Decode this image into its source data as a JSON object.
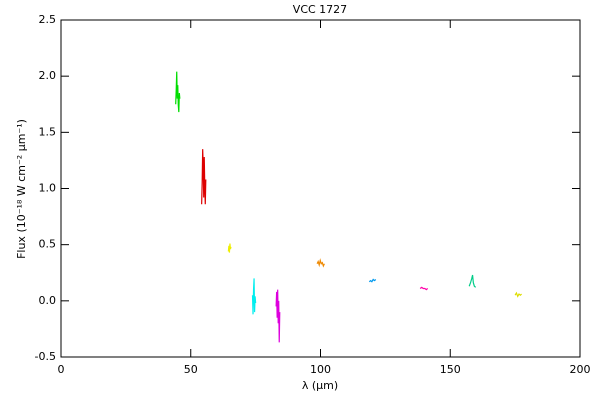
{
  "chart_data": {
    "type": "line",
    "title": "VCC 1727",
    "x_label": "λ (μm)",
    "y_label": "Flux (10⁻¹⁸ W cm⁻² μm⁻¹)",
    "xlim": [
      0,
      200
    ],
    "xticks": [
      0,
      50,
      100,
      150,
      200
    ],
    "ylim": [
      -0.5,
      2.5
    ],
    "yticks": [
      -0.5,
      {
        "value": 0,
        "label": "0.0"
      },
      0.5,
      {
        "value": 1,
        "label": "1.0"
      },
      1.5,
      {
        "value": 2,
        "label": "2.0"
      },
      2.5
    ],
    "series": [
      {
        "color": "#00dd00",
        "x": [
          44.2,
          44.4,
          44.6,
          44.8,
          45.0,
          45.2,
          45.4,
          45.6,
          45.8
        ],
        "values": [
          1.75,
          1.88,
          2.04,
          1.8,
          1.92,
          1.74,
          1.68,
          1.85,
          1.8
        ]
      },
      {
        "color": "#dd0000",
        "x": [
          54.2,
          54.4,
          54.6,
          54.8,
          55.0,
          55.2,
          55.4,
          55.6,
          55.8
        ],
        "values": [
          0.86,
          1.05,
          1.35,
          1.2,
          0.92,
          1.28,
          1.02,
          0.86,
          1.08
        ]
      },
      {
        "color": "#eeee00",
        "x": [
          64.5,
          64.7,
          64.9,
          65.1,
          65.3,
          65.5
        ],
        "values": [
          0.44,
          0.49,
          0.43,
          0.51,
          0.46,
          0.48
        ]
      },
      {
        "color": "#00eeee",
        "x": [
          73.8,
          74.0,
          74.2,
          74.4,
          74.6,
          74.8,
          75.0
        ],
        "values": [
          0.05,
          -0.12,
          0.1,
          0.2,
          -0.1,
          0.04,
          -0.02
        ]
      },
      {
        "color": "#dd00dd",
        "x": [
          82.9,
          83.1,
          83.3,
          83.5,
          83.7,
          83.9,
          84.1,
          84.3
        ],
        "values": [
          -0.05,
          0.08,
          -0.15,
          0.1,
          -0.2,
          0.0,
          -0.37,
          -0.1
        ]
      },
      {
        "color": "#ee8800",
        "x": [
          98.7,
          99.1,
          99.5,
          99.9,
          100.3,
          100.7,
          101.1,
          101.5
        ],
        "values": [
          0.33,
          0.35,
          0.32,
          0.36,
          0.33,
          0.34,
          0.31,
          0.33
        ]
      },
      {
        "color": "#0099ee",
        "x": [
          118.8,
          119.3,
          119.8,
          120.3,
          120.8,
          121.3
        ],
        "values": [
          0.17,
          0.18,
          0.17,
          0.19,
          0.18,
          0.19
        ]
      },
      {
        "color": "#ff00aa",
        "x": [
          138.4,
          139.0,
          139.6,
          140.2,
          140.8,
          141.3
        ],
        "values": [
          0.11,
          0.12,
          0.11,
          0.11,
          0.1,
          0.11
        ]
      },
      {
        "color": "#00cc88",
        "x": [
          157.3,
          157.8,
          158.3,
          158.6,
          158.9,
          159.3,
          159.8
        ],
        "values": [
          0.13,
          0.16,
          0.2,
          0.23,
          0.16,
          0.13,
          0.12
        ]
      },
      {
        "color": "#dddd00",
        "x": [
          175.0,
          175.5,
          176.0,
          176.5,
          177.0,
          177.5
        ],
        "values": [
          0.05,
          0.07,
          0.04,
          0.06,
          0.05,
          0.06
        ]
      }
    ]
  }
}
